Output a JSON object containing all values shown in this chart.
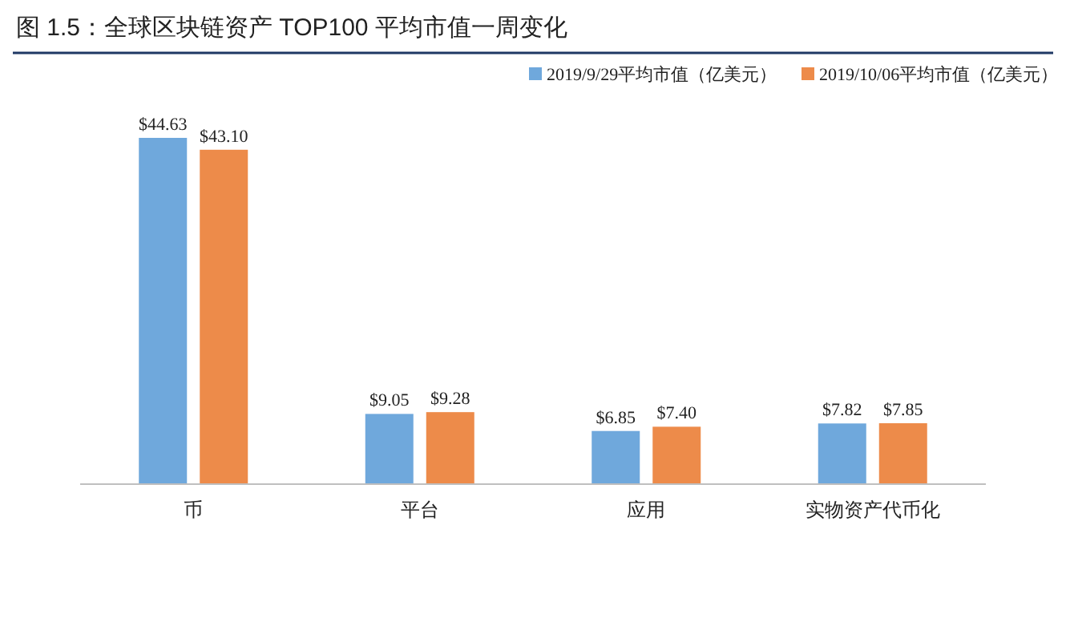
{
  "chart_data": {
    "type": "bar",
    "title": "图 1.5：全球区块链资产 TOP100 平均市值一周变化",
    "categories": [
      "币",
      "平台",
      "应用",
      "实物资产代币化"
    ],
    "series": [
      {
        "name": "2019/9/29平均市值（亿美元）",
        "color": "#6fa8dc",
        "values": [
          44.63,
          9.05,
          6.85,
          7.82
        ],
        "value_labels": [
          "$44.63",
          "$9.05",
          "$6.85",
          "$7.82"
        ]
      },
      {
        "name": "2019/10/06平均市值（亿美元）",
        "color": "#ed8b4a",
        "values": [
          43.1,
          9.28,
          7.4,
          7.85
        ],
        "value_labels": [
          "$43.10",
          "$9.28",
          "$7.40",
          "$7.85"
        ]
      }
    ],
    "legend": "top right"
  }
}
